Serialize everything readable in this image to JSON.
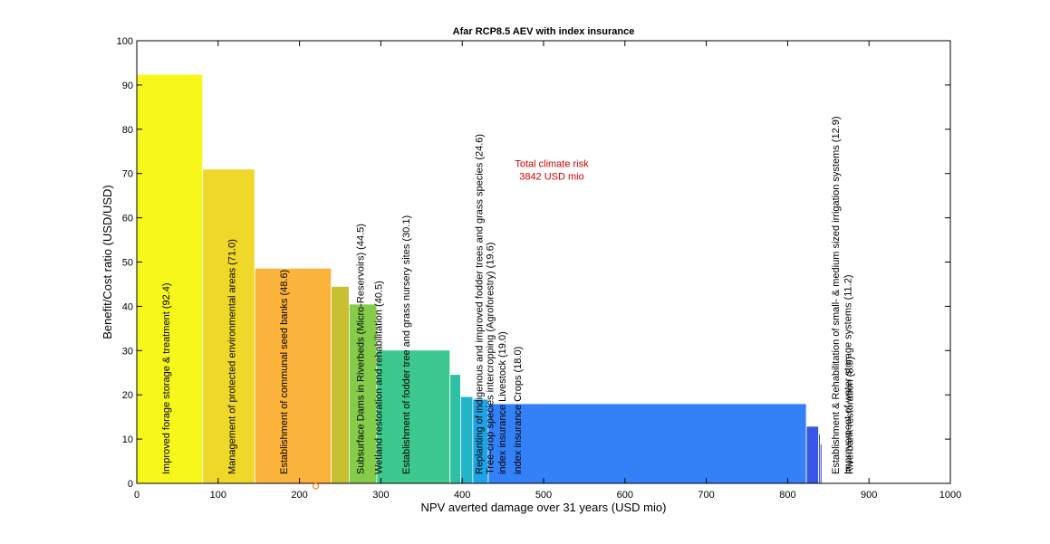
{
  "chart_data": {
    "type": "bar",
    "title": "Afar RCP8.5 AEV with index insurance",
    "xlabel": "NPV averted damage over 31 years (USD mio)",
    "ylabel": "Benefit/Cost ratio (USD/USD)",
    "xlim": [
      0,
      1000
    ],
    "ylim": [
      0,
      100
    ],
    "xticks": [
      0,
      100,
      200,
      300,
      400,
      500,
      600,
      700,
      800,
      900,
      1000
    ],
    "yticks": [
      0,
      10,
      20,
      30,
      40,
      50,
      60,
      70,
      80,
      90,
      100
    ],
    "grid": false,
    "annotation": {
      "line1": "Total climate risk",
      "line2": "3842 USD mio",
      "color": "#cc0000",
      "x": 510,
      "y": 70
    },
    "marker": {
      "x": 220,
      "y": 0,
      "color": "#ff6600"
    },
    "measures": [
      {
        "label": "Improved forage storage & treatment  (92.4)",
        "x_start": 0,
        "x_end": 81,
        "bc": 92.4,
        "color": "#f7f71b"
      },
      {
        "label": "Management of protected environmental areas  (71.0)",
        "x_start": 81,
        "x_end": 145,
        "bc": 71.0,
        "color": "#f0d82a"
      },
      {
        "label": "Establishment of communal seed banks  (48.6)",
        "x_start": 145,
        "x_end": 239,
        "bc": 48.6,
        "color": "#fbb33b"
      },
      {
        "label": "Subsurface Dams in Riverbeds (Micro-Reservoirs)  (44.5)",
        "x_start": 239,
        "x_end": 261,
        "bc": 44.5,
        "color": "#c8c032"
      },
      {
        "label": "Wetland restoration and rehabilitation  (40.5)",
        "x_start": 261,
        "x_end": 295,
        "bc": 40.5,
        "color": "#84cc4a"
      },
      {
        "label": "Establishment of fodder tree and grass nursery sites  (30.1)",
        "x_start": 295,
        "x_end": 385,
        "bc": 30.1,
        "color": "#3dc98d"
      },
      {
        "label": "Replanting of indigenous and improved fodder trees and grass species  (24.6)",
        "x_start": 385,
        "x_end": 398,
        "bc": 24.6,
        "color": "#2ec0a5"
      },
      {
        "label": "Tree-crop species intercropping (Agroforestry)  (19.6)",
        "x_start": 398,
        "x_end": 413,
        "bc": 19.6,
        "color": "#22b5c8"
      },
      {
        "label": "index insurance Livestock  (19.0)",
        "x_start": 413,
        "x_end": 432,
        "bc": 19.0,
        "color": "#1da3e6"
      },
      {
        "label": "index insurance Crops  (18.0)",
        "x_start": 432,
        "x_end": 823,
        "bc": 18.0,
        "color": "#3481f7"
      },
      {
        "label": "Establishment & Rehabilitation of small- & medium sized irrigation systems  (12.9)",
        "x_start": 823,
        "x_end": 838,
        "bc": 12.9,
        "color": "#3857e6"
      },
      {
        "label": "Improvement of water storage systems  (11.2)",
        "x_start": 838,
        "x_end": 840,
        "bc": 11.2,
        "color": "#2d45d0"
      },
      {
        "label": "Riverbank restoration  (8.9)",
        "x_start": 840,
        "x_end": 842,
        "bc": 8.9,
        "color": "#2836b8"
      }
    ]
  }
}
